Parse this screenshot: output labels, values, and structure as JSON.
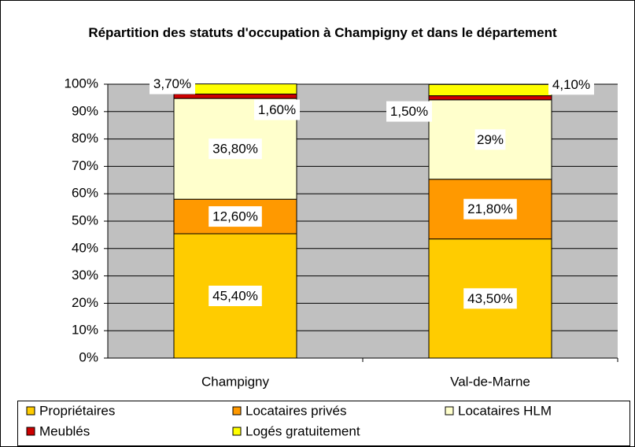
{
  "chart_data": {
    "type": "stacked_bar",
    "title": "Répartition des statuts d'occupation à Champigny et dans le département",
    "categories": [
      "Champigny",
      "Val-de-Marne"
    ],
    "series": [
      {
        "name": "Propriétaires",
        "color": "#ffcc00",
        "values": [
          45.4,
          43.5
        ],
        "value_labels": [
          "45,40%",
          "43,50%"
        ]
      },
      {
        "name": "Locataires privés",
        "color": "#ff9900",
        "values": [
          12.6,
          21.8
        ],
        "value_labels": [
          "12,60%",
          "21,80%"
        ]
      },
      {
        "name": "Locataires HLM",
        "color": "#ffffcc",
        "values": [
          36.8,
          29
        ],
        "value_labels": [
          "36,80%",
          "29%"
        ]
      },
      {
        "name": "Meublés",
        "color": "#cc0000",
        "values": [
          1.6,
          1.5
        ],
        "value_labels": [
          "1,60%",
          "1,50%"
        ]
      },
      {
        "name": "Logés gratuitement",
        "color": "#ffff00",
        "values": [
          3.7,
          4.1
        ],
        "value_labels": [
          "3,70%",
          "4,10%"
        ]
      }
    ],
    "ylim": [
      0,
      100
    ],
    "yticks": [
      {
        "value": 0,
        "label": "0%"
      },
      {
        "value": 10,
        "label": "10%"
      },
      {
        "value": 20,
        "label": "20%"
      },
      {
        "value": 30,
        "label": "30%"
      },
      {
        "value": 40,
        "label": "40%"
      },
      {
        "value": 50,
        "label": "50%"
      },
      {
        "value": 60,
        "label": "60%"
      },
      {
        "value": 70,
        "label": "70%"
      },
      {
        "value": 80,
        "label": "80%"
      },
      {
        "value": 90,
        "label": "90%"
      },
      {
        "value": 100,
        "label": "100%"
      }
    ],
    "grid": true,
    "legend": "bottom"
  }
}
